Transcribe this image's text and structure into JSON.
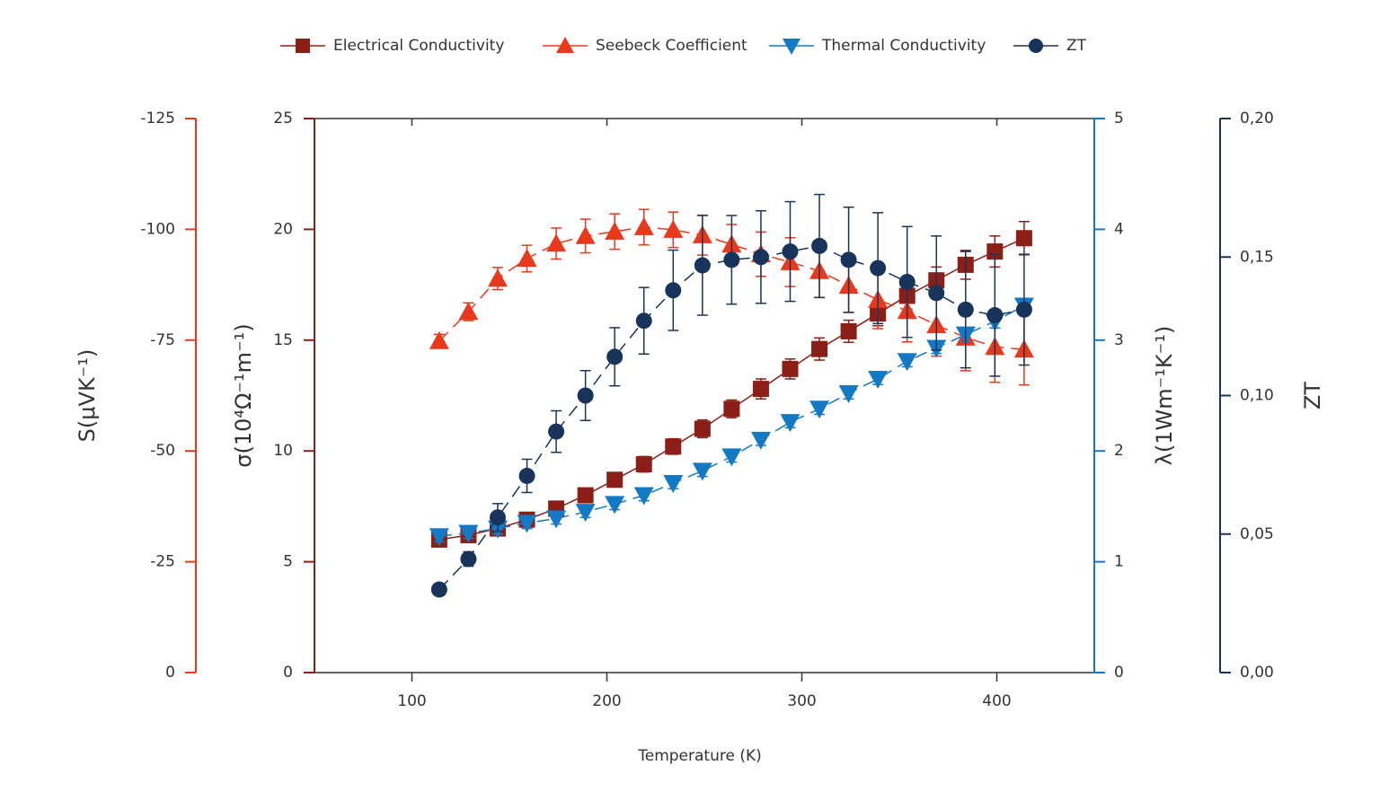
{
  "chart_data": {
    "type": "line",
    "xlabel": "Temperature (K)",
    "xlim": [
      50,
      450
    ],
    "xticks": [
      100,
      200,
      300,
      400
    ],
    "ylabel": "σ(10⁴Ω⁻¹m⁻¹)",
    "ylim": [
      0,
      25
    ],
    "yticks": [
      0,
      5,
      10,
      15,
      20,
      25
    ],
    "y2label": "λ(1Wm⁻¹K⁻¹)",
    "y2lim": [
      0,
      5
    ],
    "y2ticks": [
      0,
      1,
      2,
      3,
      4,
      5
    ],
    "y3label": "S(μVK⁻¹)",
    "y3lim": [
      0,
      -125
    ],
    "y3ticks": [
      0,
      -25,
      -50,
      -75,
      -100,
      -125
    ],
    "y4label": "ZT",
    "y4lim": [
      0,
      0.2
    ],
    "y4ticks": [
      {
        "value": 0,
        "label": "0,00"
      },
      {
        "value": 0.05,
        "label": "0,05"
      },
      {
        "value": 0.1,
        "label": "0,10"
      },
      {
        "value": 0.15,
        "label": "0,15"
      },
      {
        "value": 0.2,
        "label": "0,20"
      }
    ],
    "x": [
      114,
      129,
      144,
      159,
      174,
      189,
      204,
      219,
      234,
      249,
      264,
      279,
      294,
      309,
      324,
      339,
      354,
      369,
      384,
      399,
      414
    ],
    "series": [
      {
        "name": "Electrical Conductivity",
        "color": "#8b1e16",
        "marker": "square",
        "linestyle": "solid",
        "axis": "y",
        "values": [
          6.0,
          6.2,
          6.5,
          6.9,
          7.4,
          8.0,
          8.7,
          9.4,
          10.2,
          11.0,
          11.9,
          12.8,
          13.7,
          14.6,
          15.4,
          16.2,
          17.0,
          17.7,
          18.4,
          19.0,
          19.6
        ],
        "errors": [
          0.2,
          0.2,
          0.3,
          0.3,
          0.3,
          0.3,
          0.3,
          0.35,
          0.35,
          0.4,
          0.4,
          0.45,
          0.45,
          0.5,
          0.5,
          0.55,
          0.6,
          0.6,
          0.65,
          0.7,
          0.75
        ]
      },
      {
        "name": "Seebeck Coefficient",
        "color": "#e8391d",
        "marker": "triangle-up",
        "linestyle": "dashed",
        "axis": "y3",
        "values": [
          -74.8,
          -81.4,
          -88.9,
          -93.4,
          -96.8,
          -98.5,
          -99.5,
          -100.5,
          -99.9,
          -98.7,
          -96.6,
          -94.4,
          -92.6,
          -90.6,
          -87.3,
          -84.1,
          -81.6,
          -78.4,
          -75.6,
          -73.5,
          -72.9
        ],
        "errors": [
          1.5,
          2,
          2.5,
          3,
          3.5,
          3.8,
          4,
          4,
          4,
          4.5,
          4.5,
          5,
          5.5,
          6,
          6,
          6.5,
          7,
          7,
          7.5,
          8,
          8
        ]
      },
      {
        "name": "Thermal Conductivity",
        "color": "#1479c4",
        "marker": "triangle-down",
        "linestyle": "dashed",
        "axis": "y2",
        "values": [
          1.23,
          1.26,
          1.3,
          1.35,
          1.39,
          1.45,
          1.52,
          1.6,
          1.71,
          1.82,
          1.95,
          2.1,
          2.26,
          2.38,
          2.52,
          2.65,
          2.81,
          2.93,
          3.05,
          3.17,
          3.31
        ],
        "errors": [
          0.05,
          0.05,
          0.05,
          0.05,
          0.05,
          0.05,
          0.05,
          0.05,
          0.05,
          0.05,
          0.05,
          0.05,
          0.05,
          0.05,
          0.05,
          0.05,
          0.05,
          0.05,
          0.06,
          0.06,
          0.06
        ]
      },
      {
        "name": "ZT",
        "color": "#18345a",
        "marker": "circle",
        "linestyle": "dashed",
        "axis": "y4",
        "values": [
          0.03,
          0.041,
          0.056,
          0.071,
          0.087,
          0.1,
          0.114,
          0.127,
          0.138,
          0.147,
          0.149,
          0.15,
          0.152,
          0.154,
          0.149,
          0.146,
          0.141,
          0.137,
          0.131,
          0.129,
          0.131
        ],
        "errors": [
          0.001,
          0.0026,
          0.005,
          0.006,
          0.0075,
          0.009,
          0.0105,
          0.012,
          0.0145,
          0.018,
          0.016,
          0.0167,
          0.018,
          0.0186,
          0.019,
          0.02,
          0.02,
          0.0206,
          0.021,
          0.022,
          0.02
        ]
      }
    ]
  }
}
